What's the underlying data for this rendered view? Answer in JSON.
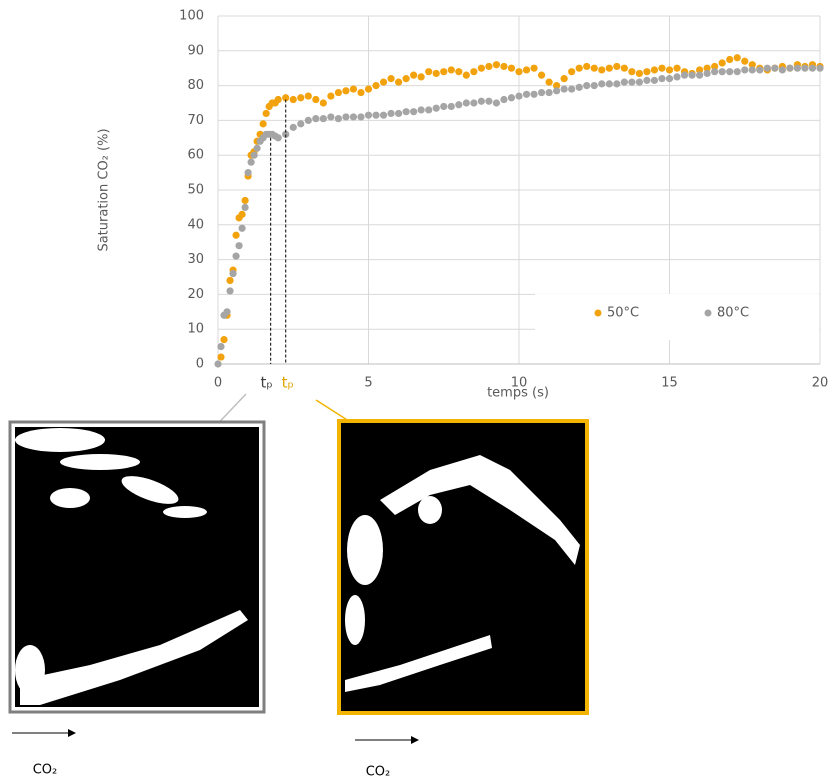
{
  "chart_data": {
    "type": "scatter",
    "y_label": "Saturation CO₂ (%)",
    "x_label": "temps (s)",
    "xlim": [
      0,
      20
    ],
    "xticks": [
      0,
      5,
      10,
      15,
      20
    ],
    "ylim": [
      0,
      100
    ],
    "yticks": [
      0,
      10,
      20,
      30,
      40,
      50,
      60,
      70,
      80,
      90,
      100
    ],
    "grid": true,
    "legend": "lower right",
    "series": [
      {
        "name": "50°C",
        "color": "#f2a20c",
        "x": [
          0.1,
          0.2,
          0.3,
          0.4,
          0.5,
          0.6,
          0.7,
          0.8,
          0.9,
          1.0,
          1.1,
          1.2,
          1.3,
          1.4,
          1.5,
          1.6,
          1.7,
          1.8,
          1.9,
          2.0,
          2.25,
          2.5,
          2.75,
          3.0,
          3.25,
          3.5,
          3.75,
          4.0,
          4.25,
          4.5,
          4.75,
          5.0,
          5.25,
          5.5,
          5.75,
          6.0,
          6.25,
          6.5,
          6.75,
          7.0,
          7.25,
          7.5,
          7.75,
          8.0,
          8.25,
          8.5,
          8.75,
          9.0,
          9.25,
          9.5,
          9.75,
          10.0,
          10.25,
          10.5,
          10.75,
          11.0,
          11.25,
          11.5,
          11.75,
          12.0,
          12.25,
          12.5,
          12.75,
          13.0,
          13.25,
          13.5,
          13.75,
          14.0,
          14.25,
          14.5,
          14.75,
          15.0,
          15.25,
          15.5,
          15.75,
          16.0,
          16.25,
          16.5,
          16.75,
          17.0,
          17.25,
          17.5,
          17.75,
          18.0,
          18.25,
          18.5,
          18.75,
          19.0,
          19.25,
          19.5,
          19.75,
          20.0
        ],
        "values": [
          2,
          7,
          14,
          24,
          27,
          37,
          42,
          43,
          47,
          54,
          60,
          61,
          64,
          66,
          69,
          72,
          74,
          75,
          75,
          76,
          76.5,
          76,
          76.5,
          77,
          76,
          75,
          77,
          78,
          78.5,
          79,
          78,
          79,
          80,
          81,
          82,
          81,
          82,
          83,
          82.5,
          84,
          83.5,
          84,
          84.5,
          84,
          83,
          84,
          85,
          85.5,
          86,
          85.5,
          85,
          84,
          84.5,
          85,
          83,
          81,
          80,
          82,
          84,
          85,
          85.5,
          85,
          84.5,
          85,
          85.5,
          85,
          84,
          83.5,
          84,
          84.5,
          85,
          84.5,
          85,
          84,
          83.5,
          84.5,
          85,
          85.5,
          86.5,
          87.5,
          88,
          87,
          86,
          85,
          84.5,
          85,
          85.5,
          85,
          86,
          85.5,
          86,
          85.5
        ]
      },
      {
        "name": "80°C",
        "color": "#a5a5a5",
        "x": [
          0.0,
          0.1,
          0.2,
          0.3,
          0.4,
          0.5,
          0.6,
          0.7,
          0.8,
          0.9,
          1.0,
          1.1,
          1.2,
          1.3,
          1.4,
          1.5,
          1.6,
          1.7,
          1.8,
          1.9,
          2.0,
          2.25,
          2.5,
          2.75,
          3.0,
          3.25,
          3.5,
          3.75,
          4.0,
          4.25,
          4.5,
          4.75,
          5.0,
          5.25,
          5.5,
          5.75,
          6.0,
          6.25,
          6.5,
          6.75,
          7.0,
          7.25,
          7.5,
          7.75,
          8.0,
          8.25,
          8.5,
          8.75,
          9.0,
          9.25,
          9.5,
          9.75,
          10.0,
          10.25,
          10.5,
          10.75,
          11.0,
          11.25,
          11.5,
          11.75,
          12.0,
          12.25,
          12.5,
          12.75,
          13.0,
          13.25,
          13.5,
          13.75,
          14.0,
          14.25,
          14.5,
          14.75,
          15.0,
          15.25,
          15.5,
          15.75,
          16.0,
          16.25,
          16.5,
          16.75,
          17.0,
          17.25,
          17.5,
          17.75,
          18.0,
          18.25,
          18.5,
          18.75,
          19.0,
          19.25,
          19.5,
          19.75,
          20.0
        ],
        "values": [
          0,
          5,
          14,
          15,
          21,
          26,
          31,
          34,
          39,
          45,
          55,
          58,
          60,
          62,
          64,
          65,
          66,
          66,
          66,
          65.5,
          65,
          66,
          68,
          69,
          70,
          70.5,
          70.5,
          71,
          70.5,
          71,
          71,
          71,
          71.5,
          71.5,
          71.5,
          72,
          72,
          72.5,
          72.5,
          73,
          73,
          73.5,
          74,
          74,
          74.5,
          75,
          75,
          75.5,
          75.5,
          75,
          76,
          76.5,
          77,
          77.5,
          77.5,
          78,
          78,
          78.5,
          79,
          79,
          79.5,
          80,
          80,
          80.5,
          80.5,
          80.5,
          81,
          81,
          81,
          81.5,
          81.5,
          82,
          82,
          82.5,
          83,
          83,
          83,
          83.5,
          84,
          84,
          84,
          84,
          84.5,
          84.5,
          84.5,
          85,
          85,
          84.5,
          85,
          85,
          85,
          85,
          85
        ]
      }
    ],
    "annotations": [
      {
        "label": "tₚ",
        "x": 1.75,
        "y": 65,
        "color": "#404040"
      },
      {
        "label": "tₚ",
        "x": 2.25,
        "y": 76,
        "color": "#e0a400"
      }
    ]
  },
  "panels": [
    {
      "label": "CO₂"
    },
    {
      "label": "CO₂"
    }
  ]
}
